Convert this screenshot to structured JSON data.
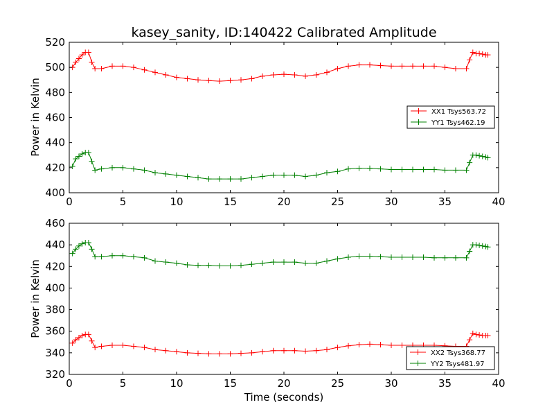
{
  "colors": {
    "red": "#ff0000",
    "green": "#008000"
  },
  "chart_data": [
    {
      "type": "line",
      "title": "kasey_sanity, ID:140422 Calibrated Amplitude",
      "xlabel": "",
      "ylabel": "Power in Kelvin",
      "xlim": [
        0,
        40
      ],
      "ylim": [
        400,
        520
      ],
      "xticks": [
        "0",
        "5",
        "10",
        "15",
        "20",
        "25",
        "30",
        "35",
        "40"
      ],
      "yticks": [
        "400",
        "420",
        "440",
        "460",
        "480",
        "500",
        "520"
      ],
      "legend_position": "center-right",
      "series": [
        {
          "name": "XX1 Tsys563.72",
          "color": "red",
          "marker": "+",
          "x": [
            0.3,
            0.6,
            0.9,
            1.2,
            1.5,
            1.8,
            2.1,
            2.4,
            3,
            4,
            5,
            6,
            7,
            8,
            9,
            10,
            11,
            12,
            13,
            14,
            15,
            16,
            17,
            18,
            19,
            20,
            21,
            22,
            23,
            24,
            25,
            26,
            27,
            28,
            29,
            30,
            31,
            32,
            33,
            34,
            35,
            36,
            37,
            37.3,
            37.6,
            37.9,
            38.2,
            38.5,
            38.8,
            39
          ],
          "y": [
            500,
            504,
            507,
            510,
            512,
            512,
            504,
            499,
            499,
            501,
            501,
            500,
            498,
            496,
            494,
            492,
            491,
            490,
            489.5,
            489,
            489.5,
            490,
            491,
            493,
            494,
            494.5,
            494,
            493,
            494,
            496,
            499,
            501,
            502,
            502,
            501.5,
            501,
            501,
            501,
            501,
            501,
            500,
            499,
            499,
            506,
            512,
            511,
            511,
            510.5,
            510,
            510
          ]
        },
        {
          "name": "YY1 Tsys462.19",
          "color": "green",
          "marker": "+",
          "x": [
            0.3,
            0.6,
            0.9,
            1.2,
            1.5,
            1.8,
            2.1,
            2.4,
            3,
            4,
            5,
            6,
            7,
            8,
            9,
            10,
            11,
            12,
            13,
            14,
            15,
            16,
            17,
            18,
            19,
            20,
            21,
            22,
            23,
            24,
            25,
            26,
            27,
            28,
            29,
            30,
            31,
            32,
            33,
            34,
            35,
            36,
            37,
            37.3,
            37.6,
            37.9,
            38.2,
            38.5,
            38.8,
            39
          ],
          "y": [
            421,
            427,
            429,
            431,
            432,
            432,
            425,
            418,
            419,
            420,
            420,
            419,
            418,
            416,
            415,
            414,
            413,
            412,
            411,
            411,
            411,
            411,
            412,
            413,
            414,
            414,
            414,
            413,
            414,
            416,
            417,
            419,
            419.5,
            419.5,
            419,
            418.5,
            418.5,
            418.5,
            418.5,
            418.5,
            418,
            418,
            418,
            424,
            430,
            430,
            429.5,
            429,
            428.5,
            428
          ]
        }
      ]
    },
    {
      "type": "line",
      "title": "",
      "xlabel": "Time (seconds)",
      "ylabel": "Power in Kelvin",
      "xlim": [
        0,
        40
      ],
      "ylim": [
        320,
        460
      ],
      "xticks": [
        "0",
        "5",
        "10",
        "15",
        "20",
        "25",
        "30",
        "35",
        "40"
      ],
      "yticks": [
        "320",
        "340",
        "360",
        "380",
        "400",
        "420",
        "440",
        "460"
      ],
      "legend_position": "lower-right",
      "series": [
        {
          "name": "XX2 Tsys368.77",
          "color": "red",
          "marker": "+",
          "x": [
            0.3,
            0.6,
            0.9,
            1.2,
            1.5,
            1.8,
            2.1,
            2.4,
            3,
            4,
            5,
            6,
            7,
            8,
            9,
            10,
            11,
            12,
            13,
            14,
            15,
            16,
            17,
            18,
            19,
            20,
            21,
            22,
            23,
            24,
            25,
            26,
            27,
            28,
            29,
            30,
            31,
            32,
            33,
            34,
            35,
            36,
            37,
            37.3,
            37.6,
            37.9,
            38.2,
            38.5,
            38.8,
            39
          ],
          "y": [
            349,
            352,
            354,
            356,
            357,
            357,
            351,
            345,
            346,
            347,
            347,
            346,
            345,
            343,
            342,
            341,
            340,
            339.5,
            339,
            339,
            339,
            339.5,
            340,
            341,
            342,
            342,
            342,
            341.5,
            342,
            343,
            345,
            346.5,
            347.5,
            348,
            347.5,
            347,
            347,
            347,
            347,
            347,
            346.5,
            346,
            346,
            352,
            358,
            357,
            356.5,
            356,
            356,
            356
          ]
        },
        {
          "name": "YY2 Tsys481.97",
          "color": "green",
          "marker": "+",
          "x": [
            0.3,
            0.6,
            0.9,
            1.2,
            1.5,
            1.8,
            2.1,
            2.4,
            3,
            4,
            5,
            6,
            7,
            8,
            9,
            10,
            11,
            12,
            13,
            14,
            15,
            16,
            17,
            18,
            19,
            20,
            21,
            22,
            23,
            24,
            25,
            26,
            27,
            28,
            29,
            30,
            31,
            32,
            33,
            34,
            35,
            36,
            37,
            37.3,
            37.6,
            37.9,
            38.2,
            38.5,
            38.8,
            39
          ],
          "y": [
            432,
            436,
            439,
            441,
            442,
            442,
            436,
            429,
            429,
            430,
            430,
            429,
            428,
            425,
            424,
            423,
            421.5,
            421,
            421,
            420.5,
            420.5,
            421,
            422,
            423,
            424,
            424,
            424,
            423,
            423,
            425,
            427,
            428.5,
            429.5,
            429.5,
            429,
            428.5,
            428.5,
            428.5,
            428.5,
            428,
            428,
            428,
            428,
            434,
            440,
            440,
            439.5,
            439,
            438.5,
            438
          ]
        }
      ]
    }
  ]
}
